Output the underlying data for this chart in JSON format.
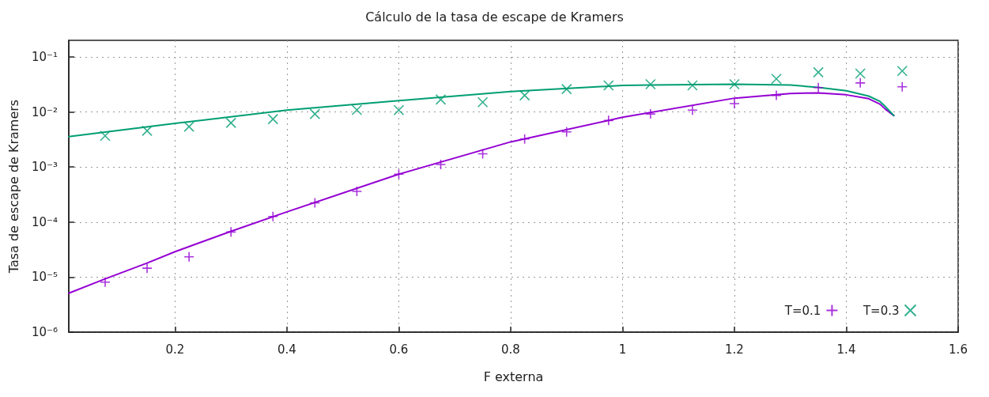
{
  "chart_data": {
    "type": "scatter",
    "title": "Cálculo de la tasa de escape de Kramers",
    "xlabel": "F externa",
    "ylabel": "Tasa de escape de Kramers",
    "xlim": [
      0.01,
      1.6
    ],
    "xticks": [
      0.2,
      0.4,
      0.6,
      0.8,
      1,
      1.2,
      1.4,
      1.6
    ],
    "ylim": [
      1e-06,
      0.2
    ],
    "yticks": [
      {
        "value": 0.1,
        "label": "10⁻¹"
      },
      {
        "value": 0.01,
        "label": "10⁻²"
      },
      {
        "value": 0.001,
        "label": "10⁻³"
      },
      {
        "value": 0.0001,
        "label": "10⁻⁴"
      },
      {
        "value": 1e-05,
        "label": "10⁻⁵"
      },
      {
        "value": 1e-06,
        "label": "10⁻⁶"
      }
    ],
    "log": "y",
    "grid": true,
    "legend": "bottom right",
    "series": [
      {
        "type": "line",
        "color": "#9400d3",
        "marker": "none",
        "x": [
          0.01,
          0.075,
          0.15,
          0.2,
          0.3,
          0.4,
          0.6,
          0.8,
          1.0,
          1.2,
          1.3,
          1.35,
          1.4,
          1.44,
          1.46,
          1.47,
          1.485
        ],
        "values": [
          5.1e-06,
          9.3e-06,
          1.8e-05,
          2.9e-05,
          6.8e-05,
          0.000153,
          0.00074,
          0.00286,
          0.008,
          0.0178,
          0.0217,
          0.0222,
          0.0205,
          0.0174,
          0.0139,
          0.0112,
          0.0086
        ]
      },
      {
        "type": "line",
        "color": "#009e73",
        "marker": "none",
        "x": [
          0.01,
          0.2,
          0.4,
          0.6,
          0.8,
          1.0,
          1.05,
          1.2,
          1.3,
          1.35,
          1.4,
          1.44,
          1.46,
          1.47,
          1.485
        ],
        "values": [
          0.00356,
          0.0062,
          0.0108,
          0.0161,
          0.0234,
          0.0303,
          0.0308,
          0.0319,
          0.0308,
          0.0279,
          0.0242,
          0.0194,
          0.0156,
          0.0125,
          0.0086
        ]
      },
      {
        "name": "T=0.1",
        "color": "#9400d3",
        "marker": "plus",
        "x": [
          0.075,
          0.15,
          0.225,
          0.3,
          0.375,
          0.45,
          0.525,
          0.6,
          0.675,
          0.75,
          0.825,
          0.9,
          0.975,
          1.05,
          1.125,
          1.2,
          1.275,
          1.35,
          1.425,
          1.5
        ],
        "values": [
          8.1e-06,
          1.45e-05,
          2.33e-05,
          6.6e-05,
          0.000126,
          0.000223,
          0.00036,
          0.00074,
          0.00111,
          0.00174,
          0.00322,
          0.00435,
          0.007,
          0.0092,
          0.0108,
          0.0142,
          0.02,
          0.0277,
          0.0337,
          0.0286
        ]
      },
      {
        "name": "T=0.3",
        "color": "#009e73",
        "marker": "cross",
        "x": [
          0.075,
          0.15,
          0.225,
          0.3,
          0.375,
          0.45,
          0.525,
          0.6,
          0.675,
          0.75,
          0.825,
          0.9,
          0.975,
          1.05,
          1.125,
          1.2,
          1.275,
          1.35,
          1.425,
          1.5
        ],
        "values": [
          0.00368,
          0.00455,
          0.00542,
          0.00634,
          0.0074,
          0.0092,
          0.0109,
          0.0108,
          0.0168,
          0.015,
          0.02,
          0.0261,
          0.0303,
          0.0319,
          0.0303,
          0.0319,
          0.0398,
          0.0525,
          0.0498,
          0.0555
        ]
      }
    ]
  }
}
